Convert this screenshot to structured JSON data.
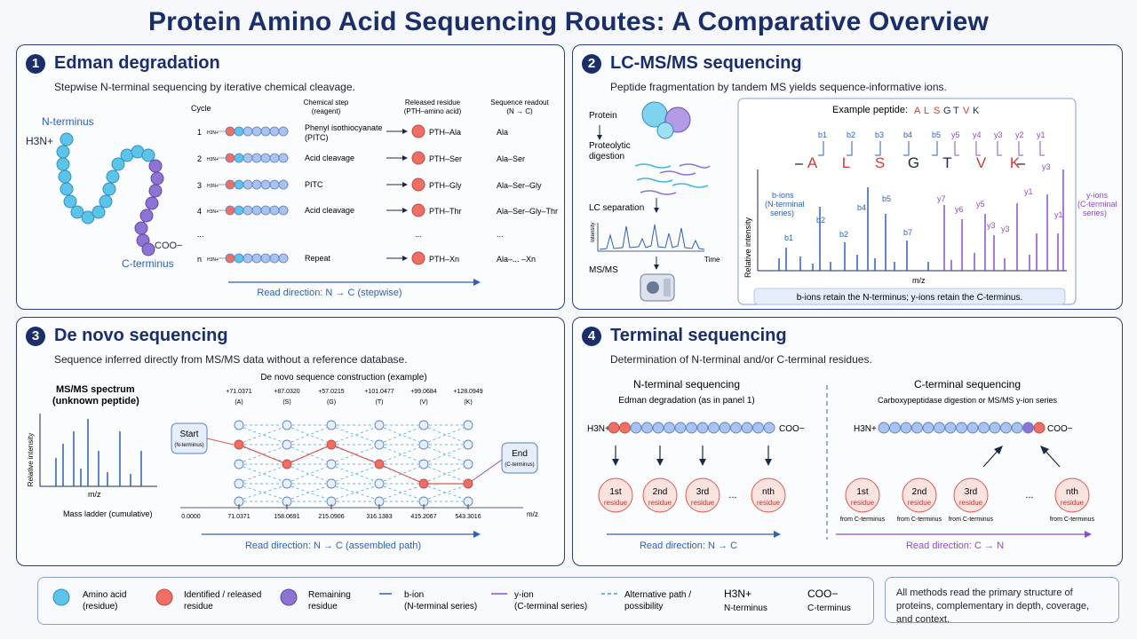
{
  "title": "Protein Amino Acid Sequencing Routes: A Comparative Overview",
  "panel1": {
    "number": "1",
    "title": "Edman degradation",
    "subtitle": "Stepwise N-terminal sequencing by iterative chemical cleavage.",
    "n_terminus": "N-terminus",
    "c_terminus": "C-terminus",
    "h3n": "H3N+",
    "coo": "COO−",
    "headers": {
      "cycle": "Cycle",
      "step": "Chemical step",
      "step2": "(reagent)",
      "released": "Released residue",
      "released2": "(PTH–amino acid)",
      "readout": "Sequence readout",
      "readout2": "(N → C)"
    },
    "rows": [
      {
        "cycle": "1",
        "step": "Phenyl isothiocyanate",
        "step2": "(PITC)",
        "released": "PTH–Ala",
        "readout": "Ala"
      },
      {
        "cycle": "2",
        "step": "Acid cleavage",
        "step2": "",
        "released": "PTH–Ser",
        "readout": "Ala–Ser"
      },
      {
        "cycle": "3",
        "step": "PITC",
        "step2": "",
        "released": "PTH–Gly",
        "readout": "Ala–Ser–Gly"
      },
      {
        "cycle": "4",
        "step": "Acid cleavage",
        "step2": "",
        "released": "PTH–Thr",
        "readout": "Ala–Ser–Gly–Thr"
      },
      {
        "cycle": "...",
        "step": "",
        "step2": "",
        "released": "...",
        "readout": "..."
      },
      {
        "cycle": "n",
        "step": "Repeat",
        "step2": "",
        "released": "PTH–Xn",
        "readout": "Ala–... –Xn"
      }
    ],
    "read_direction": "Read direction: N → C (stepwise)"
  },
  "panel2": {
    "number": "2",
    "title": "LC-MS/MS sequencing",
    "subtitle": "Peptide fragmentation by tandem MS yields sequence-informative ions.",
    "steps": [
      "Protein",
      "Proteolytic",
      "digestion",
      "LC separation",
      "MS/MS"
    ],
    "intensity": "Intensity",
    "time": "Time",
    "example_label": "Example peptide:",
    "peptide": [
      "A",
      "L",
      "S",
      "G",
      "T",
      "V",
      "K"
    ],
    "b_labels": [
      "b1",
      "b2",
      "b3",
      "b4",
      "b5"
    ],
    "y_labels": [
      "y5",
      "y4",
      "y3",
      "y2",
      "y1"
    ],
    "b_ions": "b-ions",
    "b_ions2": "(N-terminal",
    "b_ions3": "series)",
    "y_ions": "y-ions",
    "y_ions2": "(C-terminal",
    "y_ions3": "series)",
    "ylabel": "Relative intensity",
    "xlabel": "m/z",
    "peak_labels": [
      "b1",
      "b2",
      "b2",
      "b4",
      "b5",
      "b7",
      "y7",
      "y6",
      "y5",
      "y3",
      "y3",
      "y1",
      "y3",
      "y1"
    ],
    "footer": "b-ions retain the N-terminus; y-ions retain the C-terminus."
  },
  "panel3": {
    "number": "3",
    "title": "De novo sequencing",
    "subtitle": "Sequence inferred directly from MS/MS data without a reference database.",
    "spectrum_title": "MS/MS spectrum",
    "spectrum_sub": "(unknown peptide)",
    "ylabel": "Relative intensity",
    "xlabel": "m/z",
    "ladder": "Mass ladder (cumulative)",
    "construction": "De novo sequence construction (example)",
    "deltas": [
      {
        "mass": "+71.0371",
        "aa": "(A)"
      },
      {
        "mass": "+87.0320",
        "aa": "(S)"
      },
      {
        "mass": "+57.0215",
        "aa": "(G)"
      },
      {
        "mass": "+101.0477",
        "aa": "(T)"
      },
      {
        "mass": "+99.0684",
        "aa": "(V)"
      },
      {
        "mass": "+128.0949",
        "aa": "(K)"
      }
    ],
    "start": "Start",
    "start_sub": "(N-terminus)",
    "end": "End",
    "end_sub": "(C-terminus)",
    "ladder_values": [
      "0.0000",
      "71.0371",
      "158.0691",
      "215.0906",
      "316.1383",
      "415.2067",
      "543.3016"
    ],
    "ladder_unit": "m/z",
    "read_direction": "Read direction: N → C (assembled path)"
  },
  "panel4": {
    "number": "4",
    "title": "Terminal sequencing",
    "subtitle": "Determination of N-terminal and/or C-terminal residues.",
    "n_title": "N-terminal sequencing",
    "n_sub": "Edman degradation (as in panel 1)",
    "c_title": "C-terminal sequencing",
    "c_sub": "Carboxypeptidase digestion or MS/MS y-ion series",
    "h3n": "H3N+",
    "coo": "COO−",
    "n_residues": [
      "1st",
      "2nd",
      "3rd",
      "nth"
    ],
    "c_residues": [
      "1st",
      "2nd",
      "3rd",
      "nth"
    ],
    "residue_word": "residue",
    "from_c": "from C-terminus",
    "ellipsis": "...",
    "n_read": "Read direction: N → C",
    "c_read": "Read direction: C → N"
  },
  "legend": {
    "amino_acid": "Amino acid",
    "amino_acid2": "(residue)",
    "identified": "Identified / released",
    "identified2": "residue",
    "remaining": "Remaining",
    "remaining2": "residue",
    "b_ion": "b-ion",
    "b_ion2": "(N-terminal series)",
    "y_ion": "y-ion",
    "y_ion2": "(C-terminal series)",
    "alt": "Alternative path /",
    "alt2": "possibility",
    "h3n": "H3N+",
    "n_term": "N-terminus",
    "coo": "COO−",
    "c_term": "C-terminus"
  },
  "note": "All methods read the primary structure of proteins, complementary in depth, coverage, and context.",
  "colors": {
    "navy": "#1a2e6b",
    "cyan": "#5bc4e8",
    "red": "#ef6f64",
    "purple": "#8d74d2",
    "blue": "#2f5fb8",
    "ybar": "#8a4fc8"
  }
}
